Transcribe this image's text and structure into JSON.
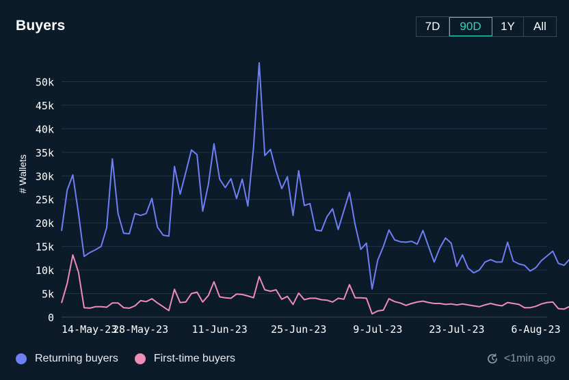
{
  "header": {
    "title": "Buyers",
    "ranges": [
      "7D",
      "90D",
      "1Y",
      "All"
    ],
    "active_range": "90D"
  },
  "footer": {
    "updated": "<1min ago"
  },
  "colors": {
    "returning": "#6f7ff5",
    "first_time": "#f08cb8",
    "accent": "#2dd4bf"
  },
  "chart_data": {
    "type": "line",
    "ylabel": "# Wallets",
    "ylim": [
      0,
      55000
    ],
    "ytick_values": [
      0,
      5000,
      10000,
      15000,
      20000,
      25000,
      30000,
      35000,
      40000,
      45000,
      50000
    ],
    "ytick_labels": [
      "0",
      "5k",
      "10k",
      "15k",
      "20k",
      "25k",
      "30k",
      "35k",
      "40k",
      "45k",
      "50k"
    ],
    "xtick_labels": [
      "14-May-23",
      "28-May-23",
      "11-Jun-23",
      "25-Jun-23",
      "9-Jul-23",
      "23-Jul-23",
      "6-Aug-23"
    ],
    "x_start": "2023-05-14",
    "x_end": "2023-08-08",
    "series": [
      {
        "name": "Returning buyers",
        "values": [
          18300,
          27000,
          30200,
          22000,
          12900,
          13700,
          14300,
          15000,
          19000,
          33600,
          22000,
          17800,
          17700,
          22000,
          21600,
          22000,
          25200,
          19100,
          17400,
          17200,
          32000,
          26100,
          30700,
          35500,
          34500,
          22500,
          28200,
          36800,
          29300,
          27500,
          29400,
          25200,
          29300,
          23600,
          36000,
          54000,
          34300,
          35600,
          31000,
          27300,
          29800,
          21600,
          31100,
          23700,
          24100,
          18500,
          18300,
          21300,
          23000,
          18600,
          22600,
          26500,
          19600,
          14400,
          15700,
          6000,
          12100,
          15000,
          18500,
          16400,
          16000,
          15900,
          16100,
          15500,
          18400,
          15000,
          11700,
          14700,
          16800,
          15700,
          10800,
          13200,
          10400,
          9400,
          10000,
          11700,
          12200,
          11700,
          11700,
          15900,
          11900,
          11300,
          11000,
          9800,
          10500,
          12000,
          13000,
          14000,
          11400,
          11000,
          12300
        ]
      },
      {
        "name": "First-time buyers",
        "values": [
          3000,
          7200,
          13200,
          9500,
          2000,
          1900,
          2200,
          2200,
          2100,
          3000,
          3000,
          2000,
          1900,
          2400,
          3500,
          3300,
          3900,
          3000,
          2200,
          1400,
          5900,
          3100,
          3200,
          5000,
          5300,
          3200,
          4600,
          7500,
          4300,
          4100,
          4000,
          4900,
          4800,
          4500,
          4100,
          8600,
          5800,
          5500,
          5800,
          3800,
          4400,
          2700,
          5100,
          3700,
          4000,
          4000,
          3700,
          3600,
          3200,
          4000,
          3800,
          6900,
          4100,
          4100,
          4000,
          700,
          1300,
          1500,
          3900,
          3300,
          3000,
          2500,
          2900,
          3200,
          3400,
          3100,
          2900,
          2900,
          2700,
          2800,
          2600,
          2800,
          2600,
          2400,
          2200,
          2600,
          2900,
          2600,
          2400,
          3100,
          2900,
          2700,
          2000,
          2000,
          2300,
          2800,
          3100,
          3200,
          1800,
          1700,
          2300
        ]
      }
    ]
  }
}
